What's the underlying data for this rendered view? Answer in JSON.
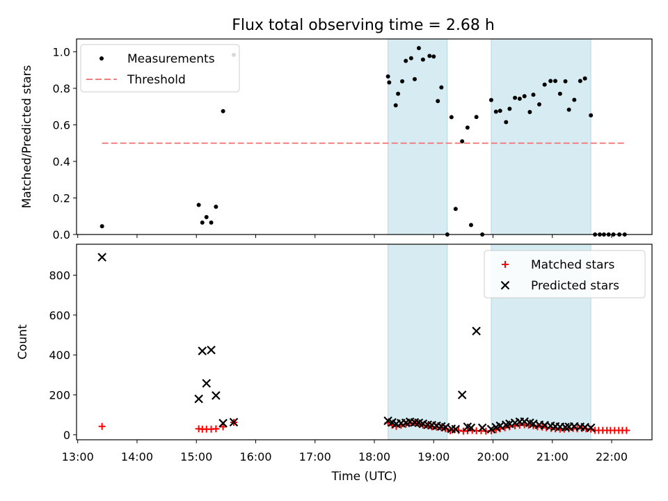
{
  "title": "Flux total observing time = 2.68 h",
  "chart_data": [
    {
      "type": "scatter",
      "panel": "top",
      "ylabel": "Matched/Predicted stars",
      "xlabel": "",
      "xlim_hours": [
        12.98,
        22.68
      ],
      "ylim": [
        0,
        1.07
      ],
      "yticks": [
        0.0,
        0.2,
        0.4,
        0.6,
        0.8,
        1.0
      ],
      "ytick_labels": [
        "0.0",
        "0.2",
        "0.4",
        "0.6",
        "0.8",
        "1.0"
      ],
      "legend": {
        "placement": "upper-left",
        "entries": [
          "Measurements",
          "Threshold"
        ]
      },
      "shaded_intervals_hours": [
        [
          18.23,
          19.23
        ],
        [
          19.97,
          21.65
        ]
      ],
      "shade_color": "#add8e6",
      "series": [
        {
          "name": "Measurements",
          "color": "#000000",
          "marker": "dot",
          "x": [
            13.41,
            15.04,
            15.1,
            15.17,
            15.25,
            15.33,
            15.45,
            15.63,
            18.23,
            18.25,
            18.36,
            18.4,
            18.47,
            18.53,
            18.62,
            18.68,
            18.75,
            18.82,
            18.93,
            19.0,
            19.07,
            19.13,
            19.23,
            19.3,
            19.37,
            19.48,
            19.57,
            19.63,
            19.72,
            19.82,
            19.97,
            20.05,
            20.12,
            20.22,
            20.28,
            20.37,
            20.45,
            20.53,
            20.62,
            20.68,
            20.78,
            20.87,
            20.97,
            21.05,
            21.13,
            21.22,
            21.28,
            21.37,
            21.47,
            21.55,
            21.65,
            21.72,
            21.8,
            21.87,
            21.95,
            22.03,
            22.13,
            22.22
          ],
          "y": [
            0.045,
            0.162,
            0.065,
            0.095,
            0.065,
            0.152,
            0.675,
            0.983,
            0.865,
            0.832,
            0.707,
            0.77,
            0.838,
            0.95,
            0.965,
            0.85,
            1.02,
            0.957,
            0.977,
            0.974,
            0.73,
            0.805,
            0.0,
            0.642,
            0.14,
            0.51,
            0.585,
            0.052,
            0.643,
            0.0,
            0.736,
            0.672,
            0.677,
            0.615,
            0.688,
            0.748,
            0.743,
            0.757,
            0.67,
            0.765,
            0.712,
            0.82,
            0.84,
            0.84,
            0.77,
            0.838,
            0.683,
            0.737,
            0.84,
            0.854,
            0.652,
            0.0,
            0.0,
            0.0,
            0.0,
            0.0,
            0.0,
            0.0
          ]
        },
        {
          "name": "Threshold",
          "color": "#f08080",
          "style": "dashed",
          "x": [
            13.41,
            22.25
          ],
          "y": [
            0.5,
            0.5
          ]
        }
      ]
    },
    {
      "type": "scatter",
      "panel": "bottom",
      "ylabel": "Count",
      "xlabel": "Time (UTC)",
      "xlim_hours": [
        12.98,
        22.68
      ],
      "xticks_hours": [
        13,
        14,
        15,
        16,
        17,
        18,
        19,
        20,
        21,
        22
      ],
      "xtick_labels": [
        "13:00",
        "14:00",
        "15:00",
        "16:00",
        "17:00",
        "18:00",
        "19:00",
        "20:00",
        "21:00",
        "22:00"
      ],
      "ylim": [
        -25,
        955
      ],
      "yticks": [
        0,
        200,
        400,
        600,
        800
      ],
      "ytick_labels": [
        "0",
        "200",
        "400",
        "600",
        "800"
      ],
      "legend": {
        "placement": "upper-right",
        "entries": [
          "Matched stars",
          "Predicted stars"
        ]
      },
      "shaded_intervals_hours": [
        [
          18.23,
          19.23
        ],
        [
          19.97,
          21.65
        ]
      ],
      "shade_color": "#add8e6",
      "series": [
        {
          "name": "Matched stars",
          "color": "#ff0000",
          "marker": "plus",
          "x": [
            13.41,
            15.04,
            15.1,
            15.17,
            15.25,
            15.33,
            15.45,
            15.63,
            18.23,
            18.3,
            18.37,
            18.45,
            18.53,
            18.6,
            18.68,
            18.75,
            18.82,
            18.9,
            18.97,
            19.05,
            19.13,
            19.2,
            19.28,
            19.35,
            19.42,
            19.5,
            19.57,
            19.65,
            19.72,
            19.8,
            19.88,
            19.97,
            20.05,
            20.12,
            20.2,
            20.28,
            20.37,
            20.45,
            20.53,
            20.6,
            20.68,
            20.75,
            20.83,
            20.9,
            20.98,
            21.05,
            21.13,
            21.2,
            21.28,
            21.35,
            21.42,
            21.5,
            21.57,
            21.65,
            21.72,
            21.78,
            21.85,
            21.92,
            21.98,
            22.05,
            22.12,
            22.18,
            22.25
          ],
          "y": [
            42,
            30,
            28,
            28,
            28,
            30,
            40,
            62,
            60,
            48,
            42,
            48,
            52,
            58,
            60,
            55,
            48,
            45,
            40,
            38,
            35,
            30,
            20,
            25,
            22,
            18,
            20,
            22,
            20,
            20,
            18,
            20,
            25,
            30,
            35,
            40,
            45,
            48,
            50,
            48,
            45,
            40,
            38,
            35,
            32,
            30,
            28,
            28,
            30,
            32,
            30,
            32,
            30,
            28,
            22,
            22,
            22,
            22,
            22,
            22,
            22,
            22,
            22
          ]
        },
        {
          "name": "Predicted stars",
          "color": "#000000",
          "marker": "x",
          "x": [
            13.41,
            15.04,
            15.1,
            15.17,
            15.25,
            15.33,
            15.45,
            15.63,
            18.23,
            18.3,
            18.37,
            18.45,
            18.53,
            18.6,
            18.68,
            18.75,
            18.82,
            18.9,
            18.97,
            19.05,
            19.13,
            19.2,
            19.3,
            19.37,
            19.48,
            19.57,
            19.63,
            19.72,
            19.82,
            19.97,
            20.05,
            20.12,
            20.22,
            20.28,
            20.37,
            20.45,
            20.53,
            20.62,
            20.68,
            20.78,
            20.87,
            20.97,
            21.05,
            21.13,
            21.22,
            21.28,
            21.37,
            21.47,
            21.55,
            21.65
          ],
          "y": [
            890,
            180,
            420,
            258,
            425,
            197,
            58,
            63,
            70,
            62,
            55,
            58,
            60,
            65,
            62,
            60,
            55,
            50,
            48,
            45,
            42,
            38,
            30,
            28,
            200,
            40,
            35,
            520,
            35,
            28,
            38,
            45,
            50,
            55,
            60,
            65,
            66,
            60,
            55,
            50,
            48,
            45,
            42,
            40,
            38,
            40,
            42,
            40,
            38,
            35
          ]
        }
      ]
    }
  ]
}
